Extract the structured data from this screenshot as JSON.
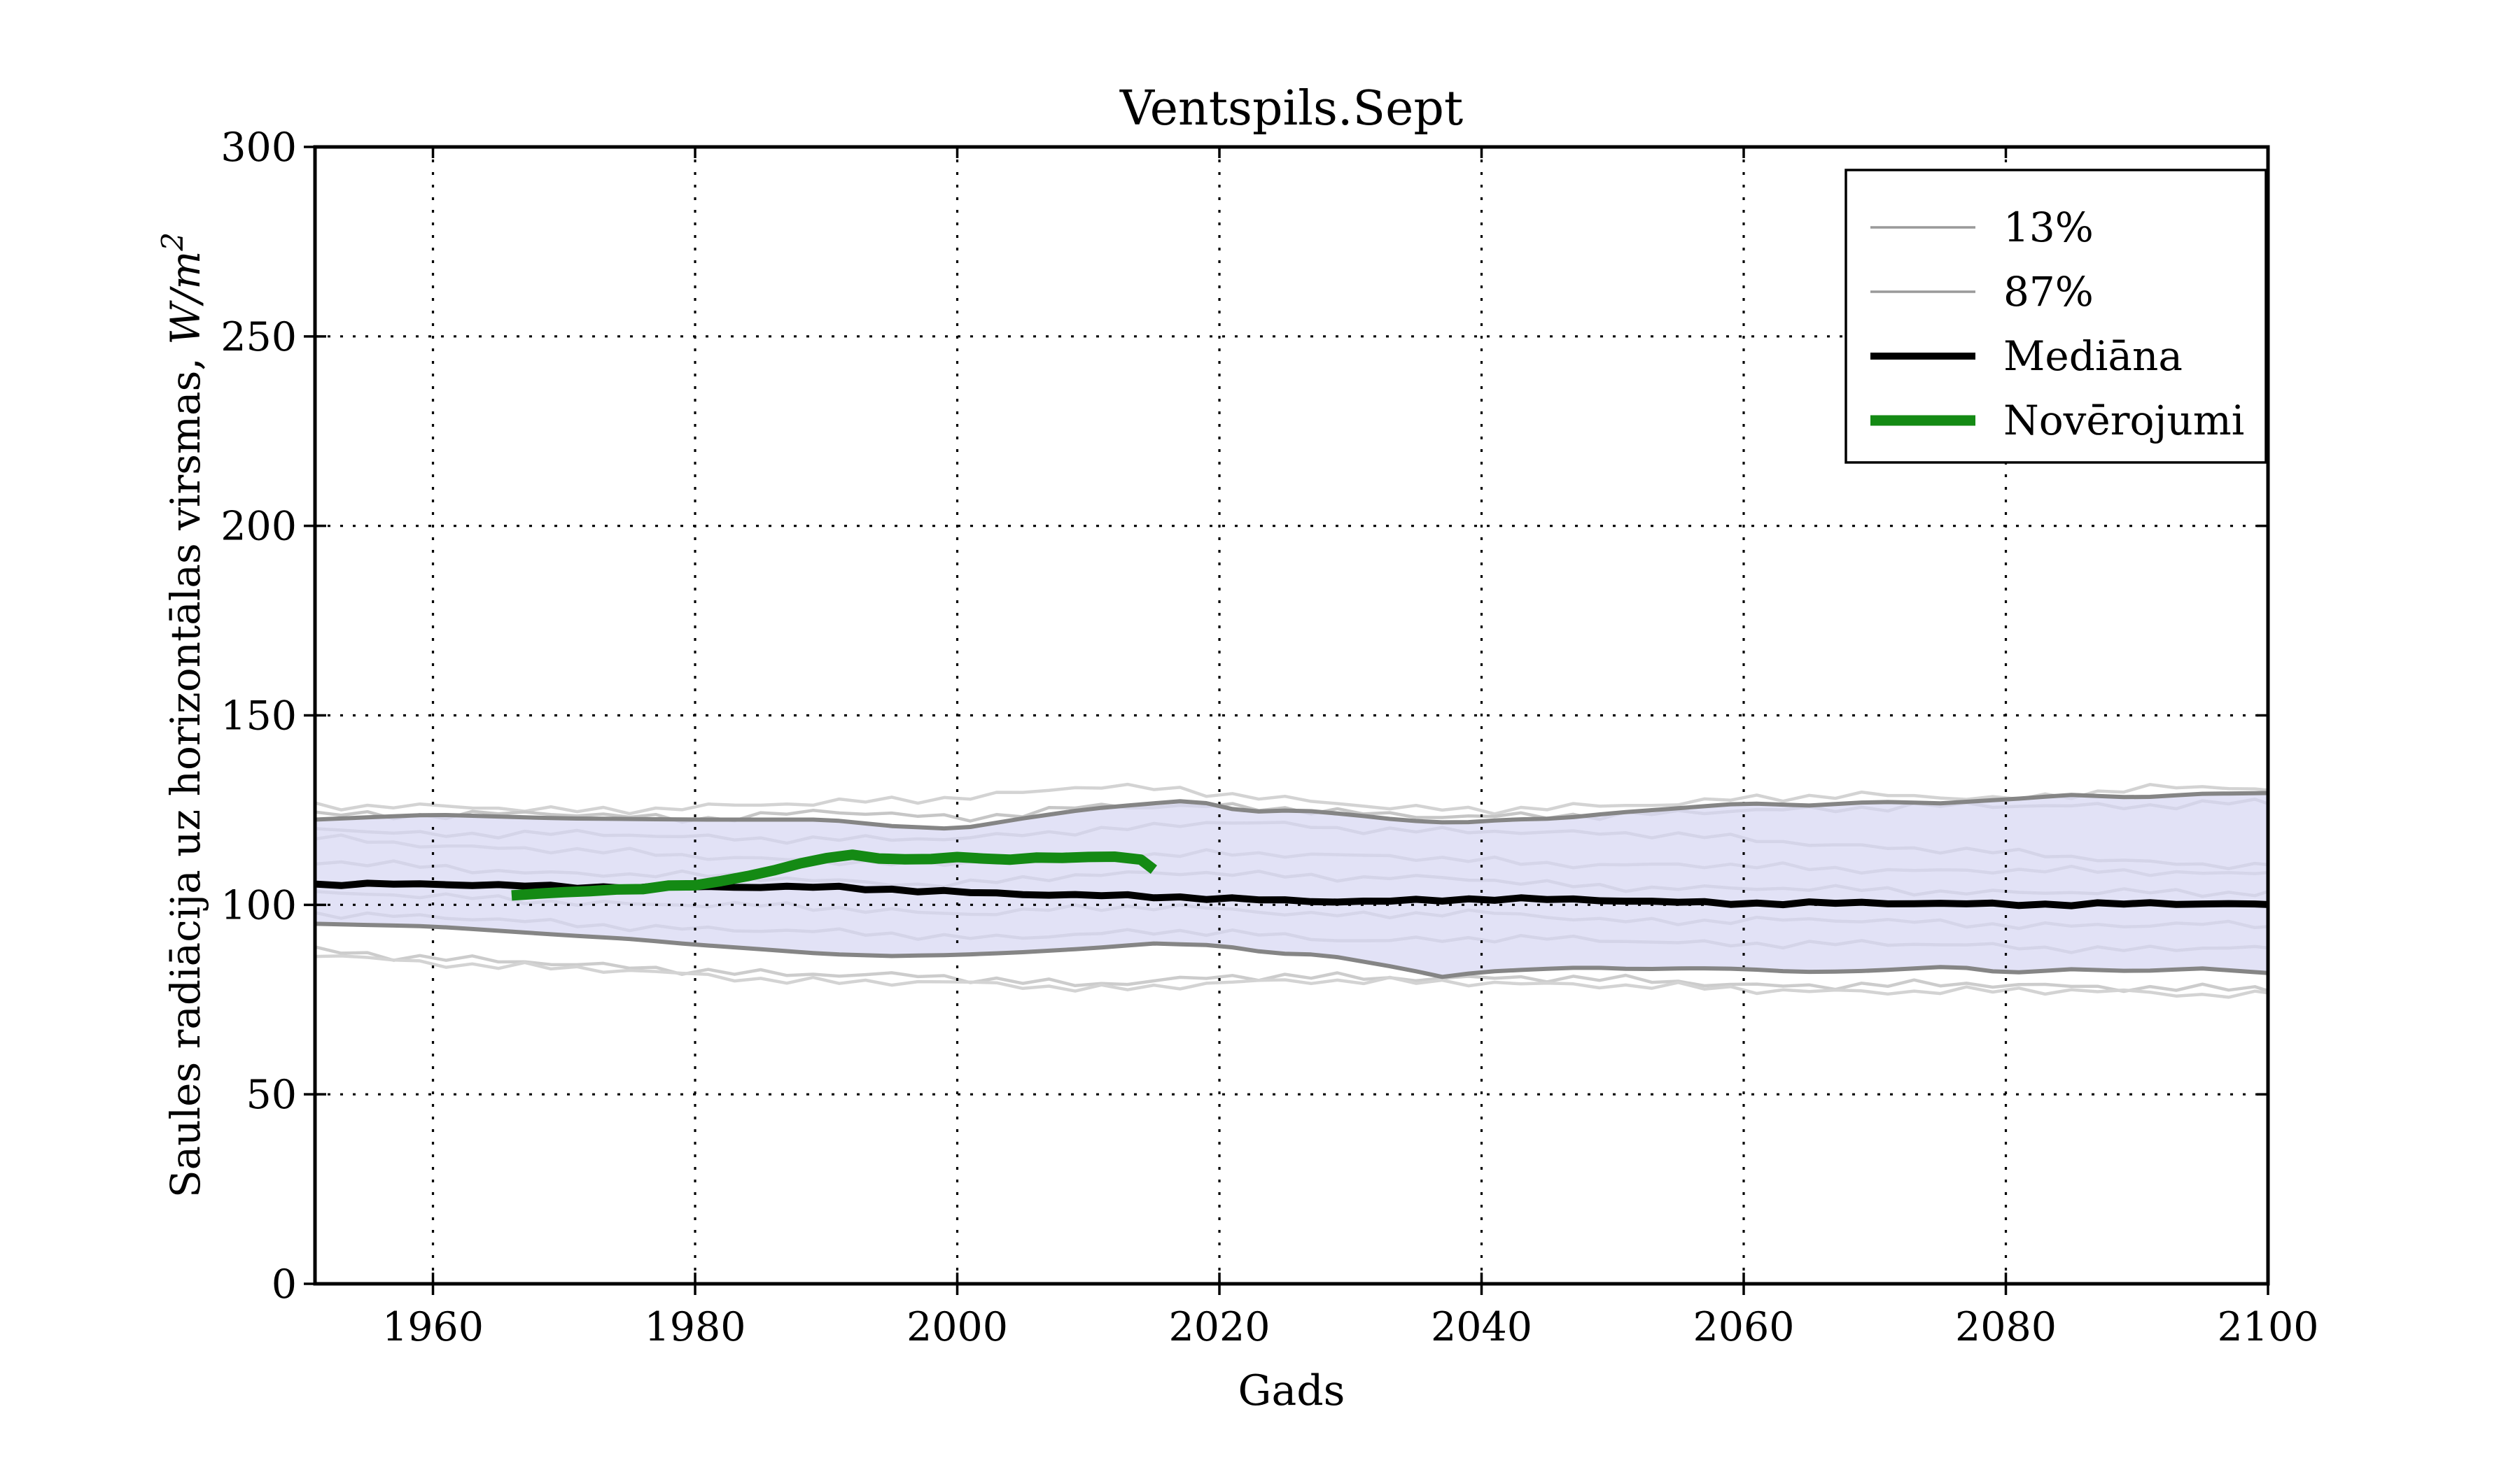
{
  "figure": {
    "background": "#ffffff",
    "grid_color": "#000000",
    "spine_color": "#000000"
  },
  "legend": {
    "position": "upper right",
    "items": [
      {
        "label": "13%",
        "color": "#9a9a9a",
        "line_width": 3.5
      },
      {
        "label": "87%",
        "color": "#9a9a9a",
        "line_width": 3.5
      },
      {
        "label": "Mediāna",
        "color": "#000000",
        "line_width": 10
      },
      {
        "label": "Novērojumi",
        "color": "#148a14",
        "line_width": 15
      }
    ]
  },
  "chart_data": {
    "type": "line",
    "title": "Ventspils.Sept",
    "xlabel": "Gads",
    "ylabel": "Saules radiācija uz horizontālas virsmas, W/m²",
    "ylabel_main": "Saules radiācija uz horizontālas virsmas, ",
    "ylabel_units": "W/m",
    "ylabel_exponent": "2",
    "xlim": [
      1951,
      2100
    ],
    "ylim": [
      0,
      300
    ],
    "xticks": [
      1960,
      1980,
      2000,
      2020,
      2040,
      2060,
      2080,
      2100
    ],
    "yticks": [
      0,
      50,
      100,
      150,
      200,
      250,
      300
    ],
    "grid": true,
    "legend_position": "upper right",
    "band": {
      "fill": "rgba(216,216,243,0.75)",
      "edge_color": "#858585",
      "edge_width": 6,
      "jitter": 0.9,
      "top": {
        "years": [
          1951,
          1960,
          1970,
          1980,
          1990,
          1995,
          2000,
          2005,
          2010,
          2015,
          2018,
          2022,
          2026,
          2030,
          2034,
          2038,
          2042,
          2046,
          2050,
          2055,
          2060,
          2065,
          2070,
          2075,
          2080,
          2085,
          2090,
          2095,
          2100
        ],
        "values": [
          122.5,
          123.8,
          122.8,
          122.5,
          122.5,
          120.8,
          120.0,
          122.8,
          125.3,
          126.8,
          127.6,
          124.5,
          125.0,
          123.8,
          122.3,
          121.6,
          122.5,
          122.8,
          124.2,
          125.5,
          126.8,
          126.2,
          127.2,
          126.8,
          127.8,
          129.0,
          128.3,
          129.3,
          129.5
        ]
      },
      "bottom": {
        "years": [
          1951,
          1960,
          1970,
          1975,
          1980,
          1985,
          1990,
          1995,
          2000,
          2005,
          2010,
          2015,
          2020,
          2024,
          2028,
          2031,
          2034,
          2037,
          2040,
          2044,
          2048,
          2052,
          2056,
          2060,
          2064,
          2068,
          2072,
          2076,
          2080,
          2085,
          2090,
          2095,
          2100
        ],
        "values": [
          95.0,
          94.3,
          92.0,
          91.0,
          89.5,
          88.3,
          87.0,
          86.5,
          86.8,
          87.5,
          88.5,
          89.8,
          89.3,
          87.2,
          86.8,
          85.0,
          83.2,
          81.0,
          82.3,
          83.0,
          83.5,
          83.0,
          83.3,
          83.1,
          82.3,
          82.4,
          83.0,
          83.8,
          82.0,
          83.0,
          82.5,
          83.2,
          82.0
        ]
      }
    },
    "percentile_lines": [
      {
        "name": "percentile-line-1",
        "color": "#d3d3d3",
        "width": 4.5,
        "jitter": 1.3,
        "years": [
          1951,
          1960,
          1970,
          1980,
          1990,
          2000,
          2010,
          2020,
          2030,
          2040,
          2050,
          2060,
          2070,
          2080,
          2090,
          2100
        ],
        "values": [
          126.5,
          125.5,
          125.0,
          126.0,
          126.5,
          128.5,
          131.5,
          129.0,
          127.0,
          124.5,
          126.0,
          128.5,
          128.5,
          128.0,
          131.0,
          130.5
        ]
      },
      {
        "name": "percentile-line-2",
        "color": "#c6c6c6",
        "width": 4.5,
        "jitter": 1.3,
        "years": [
          1951,
          1960,
          1970,
          1980,
          1990,
          2000,
          2010,
          2020,
          2030,
          2040,
          2050,
          2060,
          2070,
          2080,
          2090,
          2100
        ],
        "values": [
          124.5,
          123.5,
          123.8,
          123.0,
          124.5,
          122.5,
          126.5,
          125.5,
          124.5,
          123.5,
          123.0,
          125.5,
          125.5,
          126.0,
          126.5,
          127.0
        ]
      },
      {
        "name": "percentile-line-3",
        "color": "#c6c6c6",
        "width": 4.5,
        "jitter": 1.2,
        "years": [
          1951,
          1960,
          1970,
          1980,
          1990,
          2000,
          2010,
          2020,
          2030,
          2040,
          2050,
          2060,
          2070,
          2080,
          2090,
          2100
        ],
        "values": [
          120.5,
          118.8,
          118.5,
          118.0,
          117.5,
          117.0,
          120.0,
          122.0,
          119.5,
          120.0,
          118.5,
          117.5,
          115.5,
          113.5,
          111.5,
          110.5
        ]
      },
      {
        "name": "percentile-line-4",
        "color": "#cccccc",
        "width": 4.5,
        "jitter": 1.2,
        "years": [
          1951,
          1960,
          1970,
          1980,
          1990,
          2000,
          2010,
          2020,
          2030,
          2040,
          2050,
          2060,
          2070,
          2080,
          2090,
          2100
        ],
        "values": [
          117.5,
          116.0,
          114.5,
          112.5,
          112.0,
          110.5,
          113.0,
          114.0,
          112.5,
          112.0,
          110.5,
          110.0,
          109.5,
          109.0,
          108.5,
          108.5
        ]
      },
      {
        "name": "percentile-line-5",
        "color": "#c6c6c6",
        "width": 4.5,
        "jitter": 1.2,
        "years": [
          1951,
          1960,
          1970,
          1980,
          1990,
          2000,
          2010,
          2020,
          2030,
          2040,
          2050,
          2060,
          2070,
          2080,
          2090,
          2100
        ],
        "values": [
          111.0,
          110.0,
          108.5,
          107.5,
          106.5,
          105.5,
          107.5,
          109.0,
          107.0,
          106.5,
          105.0,
          104.0,
          104.0,
          103.5,
          103.0,
          103.0
        ]
      },
      {
        "name": "percentile-line-6",
        "color": "#cccccc",
        "width": 4.5,
        "jitter": 1.2,
        "years": [
          1951,
          1960,
          1970,
          1980,
          1990,
          2000,
          2010,
          2020,
          2030,
          2040,
          2050,
          2060,
          2070,
          2080,
          2090,
          2100
        ],
        "values": [
          103.0,
          102.0,
          101.0,
          100.0,
          99.0,
          98.0,
          99.0,
          99.0,
          97.5,
          97.5,
          96.0,
          96.0,
          95.5,
          95.0,
          94.5,
          94.5
        ]
      },
      {
        "name": "percentile-line-7",
        "color": "#c6c6c6",
        "width": 4.5,
        "jitter": 1.2,
        "years": [
          1951,
          1960,
          1970,
          1980,
          1990,
          2000,
          2010,
          2020,
          2030,
          2040,
          2050,
          2060,
          2070,
          2080,
          2090,
          2100
        ],
        "values": [
          98.0,
          96.5,
          95.0,
          94.0,
          92.5,
          91.5,
          92.5,
          92.5,
          91.0,
          91.0,
          90.5,
          90.0,
          89.5,
          89.0,
          88.5,
          88.5
        ]
      },
      {
        "name": "percentile-line-8",
        "color": "#cccccc",
        "width": 4.5,
        "jitter": 1.3,
        "years": [
          1951,
          1960,
          1970,
          1980,
          1990,
          2000,
          2010,
          2020,
          2030,
          2040,
          2050,
          2060,
          2070,
          2080,
          2090,
          2100
        ],
        "values": [
          88.5,
          86.0,
          84.0,
          83.0,
          81.5,
          80.5,
          79.5,
          80.5,
          81.0,
          81.0,
          80.0,
          79.0,
          79.0,
          78.5,
          78.5,
          78.0
        ]
      },
      {
        "name": "percentile-line-9",
        "color": "#d3d3d3",
        "width": 4.5,
        "jitter": 1.3,
        "years": [
          1951,
          1960,
          1970,
          1980,
          1990,
          2000,
          2010,
          2020,
          2030,
          2040,
          2050,
          2060,
          2070,
          2080,
          2090,
          2100
        ],
        "values": [
          87.0,
          85.0,
          83.0,
          81.5,
          80.0,
          79.0,
          78.0,
          79.5,
          79.5,
          80.0,
          78.5,
          77.5,
          77.5,
          77.0,
          77.0,
          76.5
        ]
      }
    ],
    "median": {
      "name": "Mediāna",
      "color": "#000000",
      "width": 10,
      "jitter": 0.5,
      "years": [
        1951,
        1960,
        1970,
        1980,
        1990,
        2000,
        2010,
        2020,
        2030,
        2040,
        2050,
        2060,
        2070,
        2080,
        2090,
        2100
      ],
      "values": [
        105.5,
        105.3,
        104.8,
        104.8,
        104.5,
        103.5,
        102.5,
        101.5,
        101.0,
        101.4,
        101.2,
        100.5,
        100.3,
        100.2,
        100.4,
        100.0
      ]
    },
    "observations": {
      "name": "Novērojumi",
      "color": "#148a14",
      "width": 15,
      "jitter": 0.25,
      "start_year": 1966,
      "values": [
        102.3,
        102.8,
        103.0,
        102.7,
        103.3,
        103.6,
        103.9,
        104.2,
        104.0,
        104.4,
        104.3,
        104.7,
        105.0,
        105.2,
        105.3,
        105.8,
        106.3,
        106.9,
        107.6,
        108.3,
        109.0,
        109.8,
        110.7,
        111.6,
        112.3,
        112.8,
        113.1,
        112.8,
        112.4,
        112.1,
        111.9,
        112.0,
        112.2,
        112.4,
        112.5,
        112.6,
        112.4,
        112.2,
        112.0,
        112.3,
        112.6,
        111.9,
        112.4,
        112.7,
        112.5,
        112.8,
        112.7,
        112.4,
        111.8,
        109.2
      ]
    }
  }
}
